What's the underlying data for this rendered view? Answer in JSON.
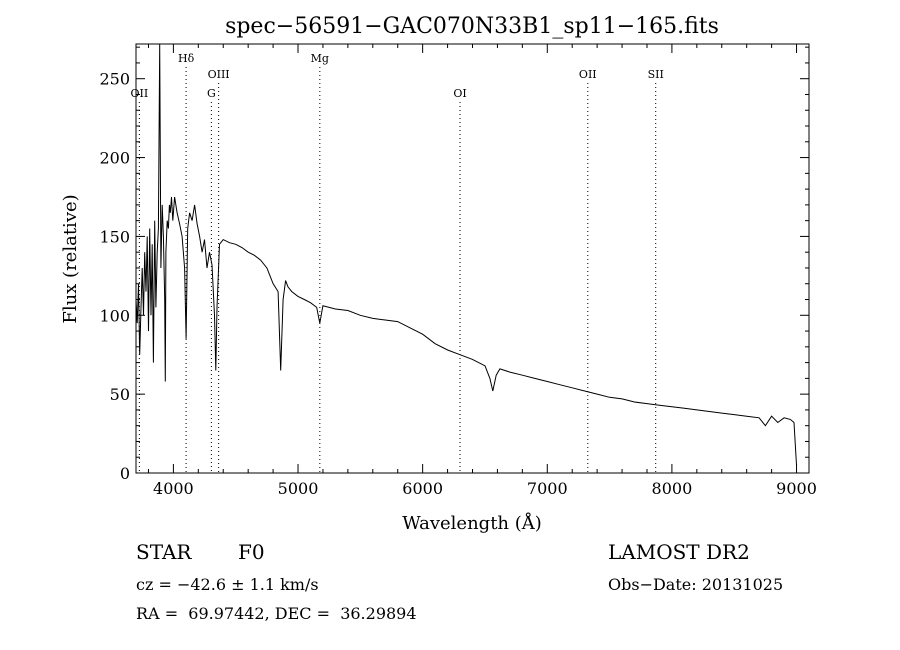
{
  "chart_data": {
    "type": "line",
    "title": "spec−56591−GAC070N33B1_sp11−165.fits",
    "xlabel": "Wavelength (Å)",
    "ylabel": "Flux (relative)",
    "xlim": [
      3700,
      9100
    ],
    "ylim": [
      0,
      272
    ],
    "xticks": [
      4000,
      5000,
      6000,
      7000,
      8000,
      9000
    ],
    "yticks": [
      0,
      50,
      100,
      150,
      200,
      250
    ],
    "grid": false,
    "series": [
      {
        "x": [
          3700,
          3710,
          3720,
          3730,
          3740,
          3750,
          3760,
          3770,
          3780,
          3790,
          3800,
          3810,
          3820,
          3830,
          3840,
          3850,
          3860,
          3870,
          3880,
          3890,
          3900,
          3910,
          3920,
          3930,
          3935,
          3940,
          3950,
          3960,
          3968,
          3975,
          3985,
          3995,
          4010,
          4030,
          4050,
          4070,
          4090,
          4102,
          4115,
          4130,
          4150,
          4170,
          4190,
          4210,
          4230,
          4250,
          4270,
          4290,
          4310,
          4330,
          4340,
          4350,
          4370,
          4400,
          4450,
          4500,
          4550,
          4600,
          4650,
          4700,
          4750,
          4800,
          4840,
          4861,
          4880,
          4900,
          4920,
          4950,
          5000,
          5050,
          5100,
          5150,
          5175,
          5200,
          5300,
          5400,
          5500,
          5600,
          5700,
          5800,
          5900,
          6000,
          6100,
          6200,
          6300,
          6400,
          6500,
          6540,
          6563,
          6590,
          6620,
          6700,
          6800,
          6900,
          7000,
          7100,
          7200,
          7300,
          7400,
          7500,
          7600,
          7700,
          7800,
          7900,
          8000,
          8100,
          8200,
          8300,
          8400,
          8500,
          8600,
          8700,
          8750,
          8800,
          8850,
          8900,
          8950,
          8980,
          9000
        ],
        "y": [
          110,
          95,
          120,
          75,
          105,
          130,
          100,
          140,
          115,
          150,
          90,
          155,
          100,
          145,
          70,
          160,
          105,
          140,
          155,
          272,
          130,
          170,
          150,
          110,
          58,
          140,
          160,
          155,
          170,
          165,
          175,
          160,
          175,
          165,
          158,
          150,
          130,
          85,
          155,
          165,
          160,
          170,
          158,
          150,
          140,
          148,
          130,
          140,
          132,
          100,
          65,
          105,
          145,
          148,
          146,
          145,
          143,
          140,
          138,
          135,
          130,
          120,
          115,
          65,
          110,
          122,
          118,
          115,
          112,
          110,
          108,
          105,
          95,
          106,
          104,
          103,
          100,
          98,
          97,
          96,
          92,
          88,
          82,
          78,
          75,
          72,
          68,
          60,
          52,
          62,
          66,
          64,
          62,
          60,
          58,
          56,
          54,
          52,
          50,
          48,
          47,
          45,
          44,
          43,
          42,
          41,
          40,
          39,
          38,
          37,
          36,
          35,
          30,
          36,
          32,
          35,
          34,
          32,
          5
        ]
      }
    ],
    "lines": [
      {
        "label": "OII",
        "x": 3727,
        "row": 2
      },
      {
        "label": "Hδ",
        "x": 4102,
        "row": 0
      },
      {
        "label": "G",
        "x": 4305,
        "row": 2
      },
      {
        "label": "OIII",
        "x": 4363,
        "row": 1
      },
      {
        "label": "Mg",
        "x": 5175,
        "row": 0
      },
      {
        "label": "OI",
        "x": 6300,
        "row": 2
      },
      {
        "label": "OII",
        "x": 7325,
        "row": 1
      },
      {
        "label": "SII",
        "x": 7870,
        "row": 1
      }
    ]
  },
  "info": {
    "object_class": "STAR",
    "subclass": "F0",
    "survey": "LAMOST DR2",
    "velocity": "cz = −42.6 ± 1.1 km/s",
    "obs_date": "Obs−Date: 20131025",
    "coords": "RA =  69.97442, DEC =  36.29894"
  }
}
